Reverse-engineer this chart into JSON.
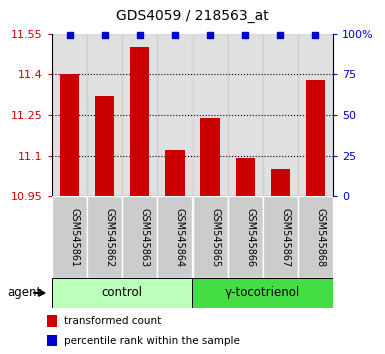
{
  "title": "GDS4059 / 218563_at",
  "samples": [
    "GSM545861",
    "GSM545862",
    "GSM545863",
    "GSM545864",
    "GSM545865",
    "GSM545866",
    "GSM545867",
    "GSM545868"
  ],
  "bar_values": [
    11.4,
    11.32,
    11.5,
    11.12,
    11.24,
    11.09,
    11.05,
    11.38
  ],
  "percentile_values": [
    99,
    99,
    99,
    99,
    99,
    99,
    99,
    99
  ],
  "bar_color": "#cc0000",
  "dot_color": "#0000cc",
  "ylim_left": [
    10.95,
    11.55
  ],
  "ylim_right": [
    0,
    100
  ],
  "yticks_left": [
    10.95,
    11.1,
    11.25,
    11.4,
    11.55
  ],
  "yticks_right": [
    0,
    25,
    50,
    75,
    100
  ],
  "ytick_labels_left": [
    "10.95",
    "11.1",
    "11.25",
    "11.4",
    "11.55"
  ],
  "ytick_labels_right": [
    "0",
    "25",
    "50",
    "75",
    "100%"
  ],
  "groups": [
    {
      "label": "control",
      "indices": [
        0,
        1,
        2,
        3
      ],
      "color": "#bbffbb"
    },
    {
      "label": "γ-tocotrienol",
      "indices": [
        4,
        5,
        6,
        7
      ],
      "color": "#44dd44"
    }
  ],
  "agent_label": "agent",
  "legend_bar_label": "transformed count",
  "legend_dot_label": "percentile rank within the sample",
  "sample_bg_color": "#cccccc",
  "title_fontsize": 10,
  "tick_fontsize": 8,
  "label_fontsize": 8,
  "bar_width": 0.55,
  "grid_yticks": [
    11.1,
    11.25,
    11.4
  ]
}
